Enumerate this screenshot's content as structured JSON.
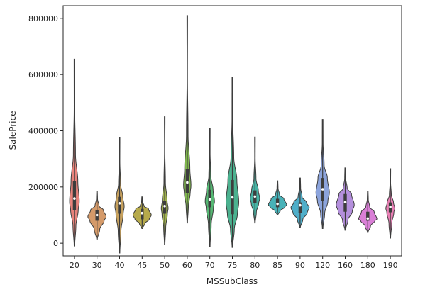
{
  "chart_data": {
    "type": "violin",
    "xlabel": "MSSubClass",
    "ylabel": "SalePrice",
    "categories": [
      "20",
      "30",
      "40",
      "45",
      "50",
      "60",
      "70",
      "75",
      "80",
      "85",
      "90",
      "120",
      "160",
      "180",
      "190"
    ],
    "yticks": [
      0,
      200000,
      400000,
      600000,
      800000
    ],
    "ytick_labels": [
      "0",
      "200000",
      "400000",
      "600000",
      "800000"
    ],
    "ylim": [
      -45000,
      845000
    ],
    "colors": [
      "#e8837c",
      "#d49a6a",
      "#c7a15e",
      "#b6aa4b",
      "#9eb04e",
      "#7fb54d",
      "#55b773",
      "#4bb18f",
      "#47b3a4",
      "#48b2b8",
      "#4faec9",
      "#8ca4dc",
      "#b48fdc",
      "#d97fd6",
      "#e87fb4"
    ],
    "violins": [
      {
        "category": "20",
        "min": -10000,
        "q1": 118000,
        "median": 159000,
        "q3": 220000,
        "max": 655000
      },
      {
        "category": "30",
        "min": 12000,
        "q1": 80000,
        "median": 100000,
        "q3": 118000,
        "max": 185000
      },
      {
        "category": "40",
        "min": -35000,
        "q1": 105000,
        "median": 142000,
        "q3": 165000,
        "max": 375000
      },
      {
        "category": "45",
        "min": 52000,
        "q1": 85000,
        "median": 107000,
        "q3": 122000,
        "max": 165000
      },
      {
        "category": "50",
        "min": -5000,
        "q1": 105000,
        "median": 132000,
        "q3": 150000,
        "max": 450000
      },
      {
        "category": "60",
        "min": 72000,
        "q1": 178000,
        "median": 216000,
        "q3": 265000,
        "max": 810000
      },
      {
        "category": "70",
        "min": -12000,
        "q1": 128000,
        "median": 156000,
        "q3": 190000,
        "max": 410000
      },
      {
        "category": "75",
        "min": -15000,
        "q1": 103000,
        "median": 163000,
        "q3": 225000,
        "max": 590000
      },
      {
        "category": "80",
        "min": 72000,
        "q1": 142000,
        "median": 166000,
        "q3": 188000,
        "max": 378000
      },
      {
        "category": "85",
        "min": 100000,
        "q1": 128000,
        "median": 140000,
        "q3": 158000,
        "max": 222000
      },
      {
        "category": "90",
        "min": 56000,
        "q1": 108000,
        "median": 135000,
        "q3": 145000,
        "max": 232000
      },
      {
        "category": "120",
        "min": 52000,
        "q1": 150000,
        "median": 192000,
        "q3": 232000,
        "max": 440000
      },
      {
        "category": "160",
        "min": 46000,
        "q1": 112000,
        "median": 146000,
        "q3": 175000,
        "max": 268000
      },
      {
        "category": "180",
        "min": 38000,
        "q1": 80000,
        "median": 88000,
        "q3": 112000,
        "max": 185000
      },
      {
        "category": "190",
        "min": 18000,
        "q1": 110000,
        "median": 129000,
        "q3": 145000,
        "max": 265000
      }
    ]
  }
}
